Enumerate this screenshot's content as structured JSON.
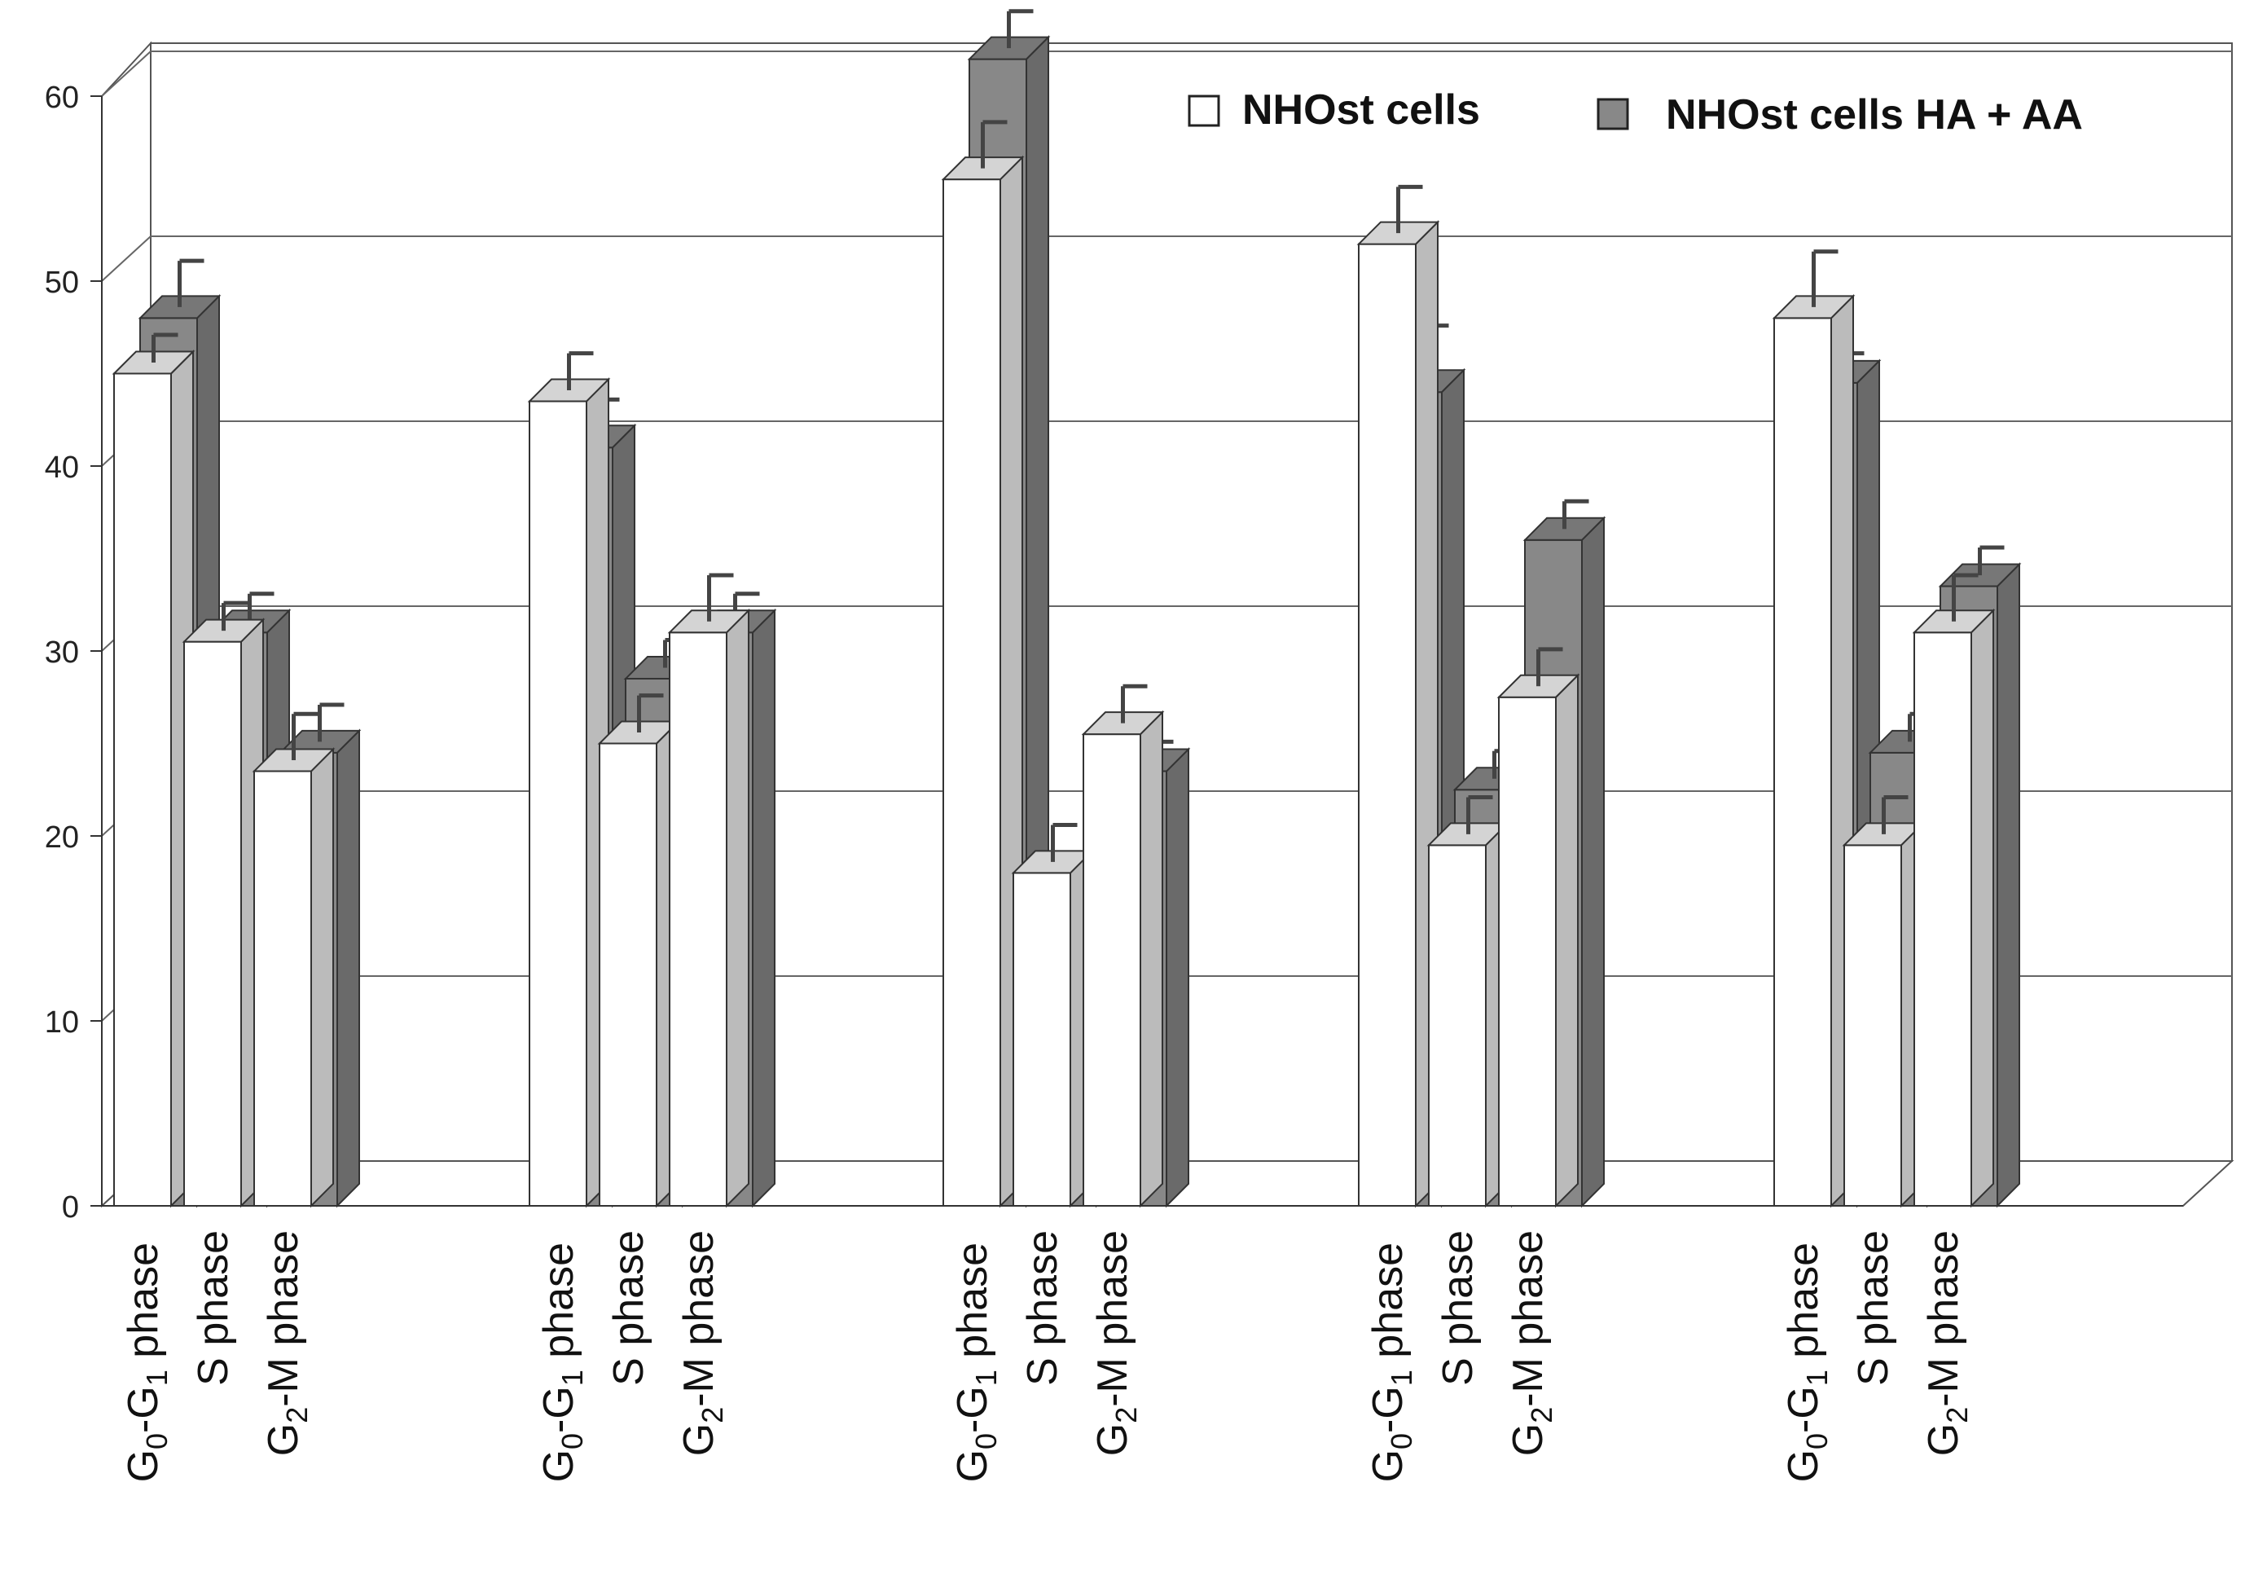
{
  "chart_data": {
    "type": "bar",
    "title": "",
    "xlabel": "",
    "ylabel": "",
    "ylim": [
      0,
      60
    ],
    "yticks": [
      0,
      10,
      20,
      30,
      40,
      50,
      60
    ],
    "groups": 5,
    "categories": [
      "G0-G1 phase",
      "S phase",
      "G2-M phase"
    ],
    "category_labels": [
      {
        "main": "G",
        "sub1": "0",
        "mid": "-G",
        "sub2": "1",
        "rest": " phase"
      },
      {
        "main": "S phase"
      },
      {
        "main": "G",
        "sub1": "2",
        "rest": "-M phase"
      }
    ],
    "series": [
      {
        "name": "NHOst cells",
        "color": "#ffffff",
        "values": [
          [
            45,
            30.5,
            23.5
          ],
          [
            43.5,
            25,
            31
          ],
          [
            55.5,
            18,
            25.5
          ],
          [
            52,
            19.5,
            27.5
          ],
          [
            48,
            19.5,
            31
          ]
        ],
        "errors": [
          [
            1.5,
            1.5,
            2.5
          ],
          [
            2,
            2,
            2.5
          ],
          [
            2.5,
            2,
            2
          ],
          [
            2.5,
            2,
            2
          ],
          [
            3,
            2,
            2.5
          ]
        ]
      },
      {
        "name": "NHOst cells HA + AA",
        "color": "#888888",
        "values": [
          [
            48,
            31,
            24.5
          ],
          [
            41,
            28.5,
            31
          ],
          [
            62,
            14,
            23.5
          ],
          [
            44,
            22.5,
            36
          ],
          [
            44.5,
            24.5,
            33.5
          ]
        ],
        "errors": [
          [
            2.5,
            1.5,
            2
          ],
          [
            2,
            1.5,
            1.5
          ],
          [
            2,
            2,
            1
          ],
          [
            3,
            1.5,
            1.5
          ],
          [
            1,
            1.5,
            1.5
          ]
        ]
      }
    ],
    "legend": {
      "position": "top-right",
      "entries": [
        "NHOst cells",
        "NHOst cells HA + AA"
      ]
    },
    "grid": true
  }
}
